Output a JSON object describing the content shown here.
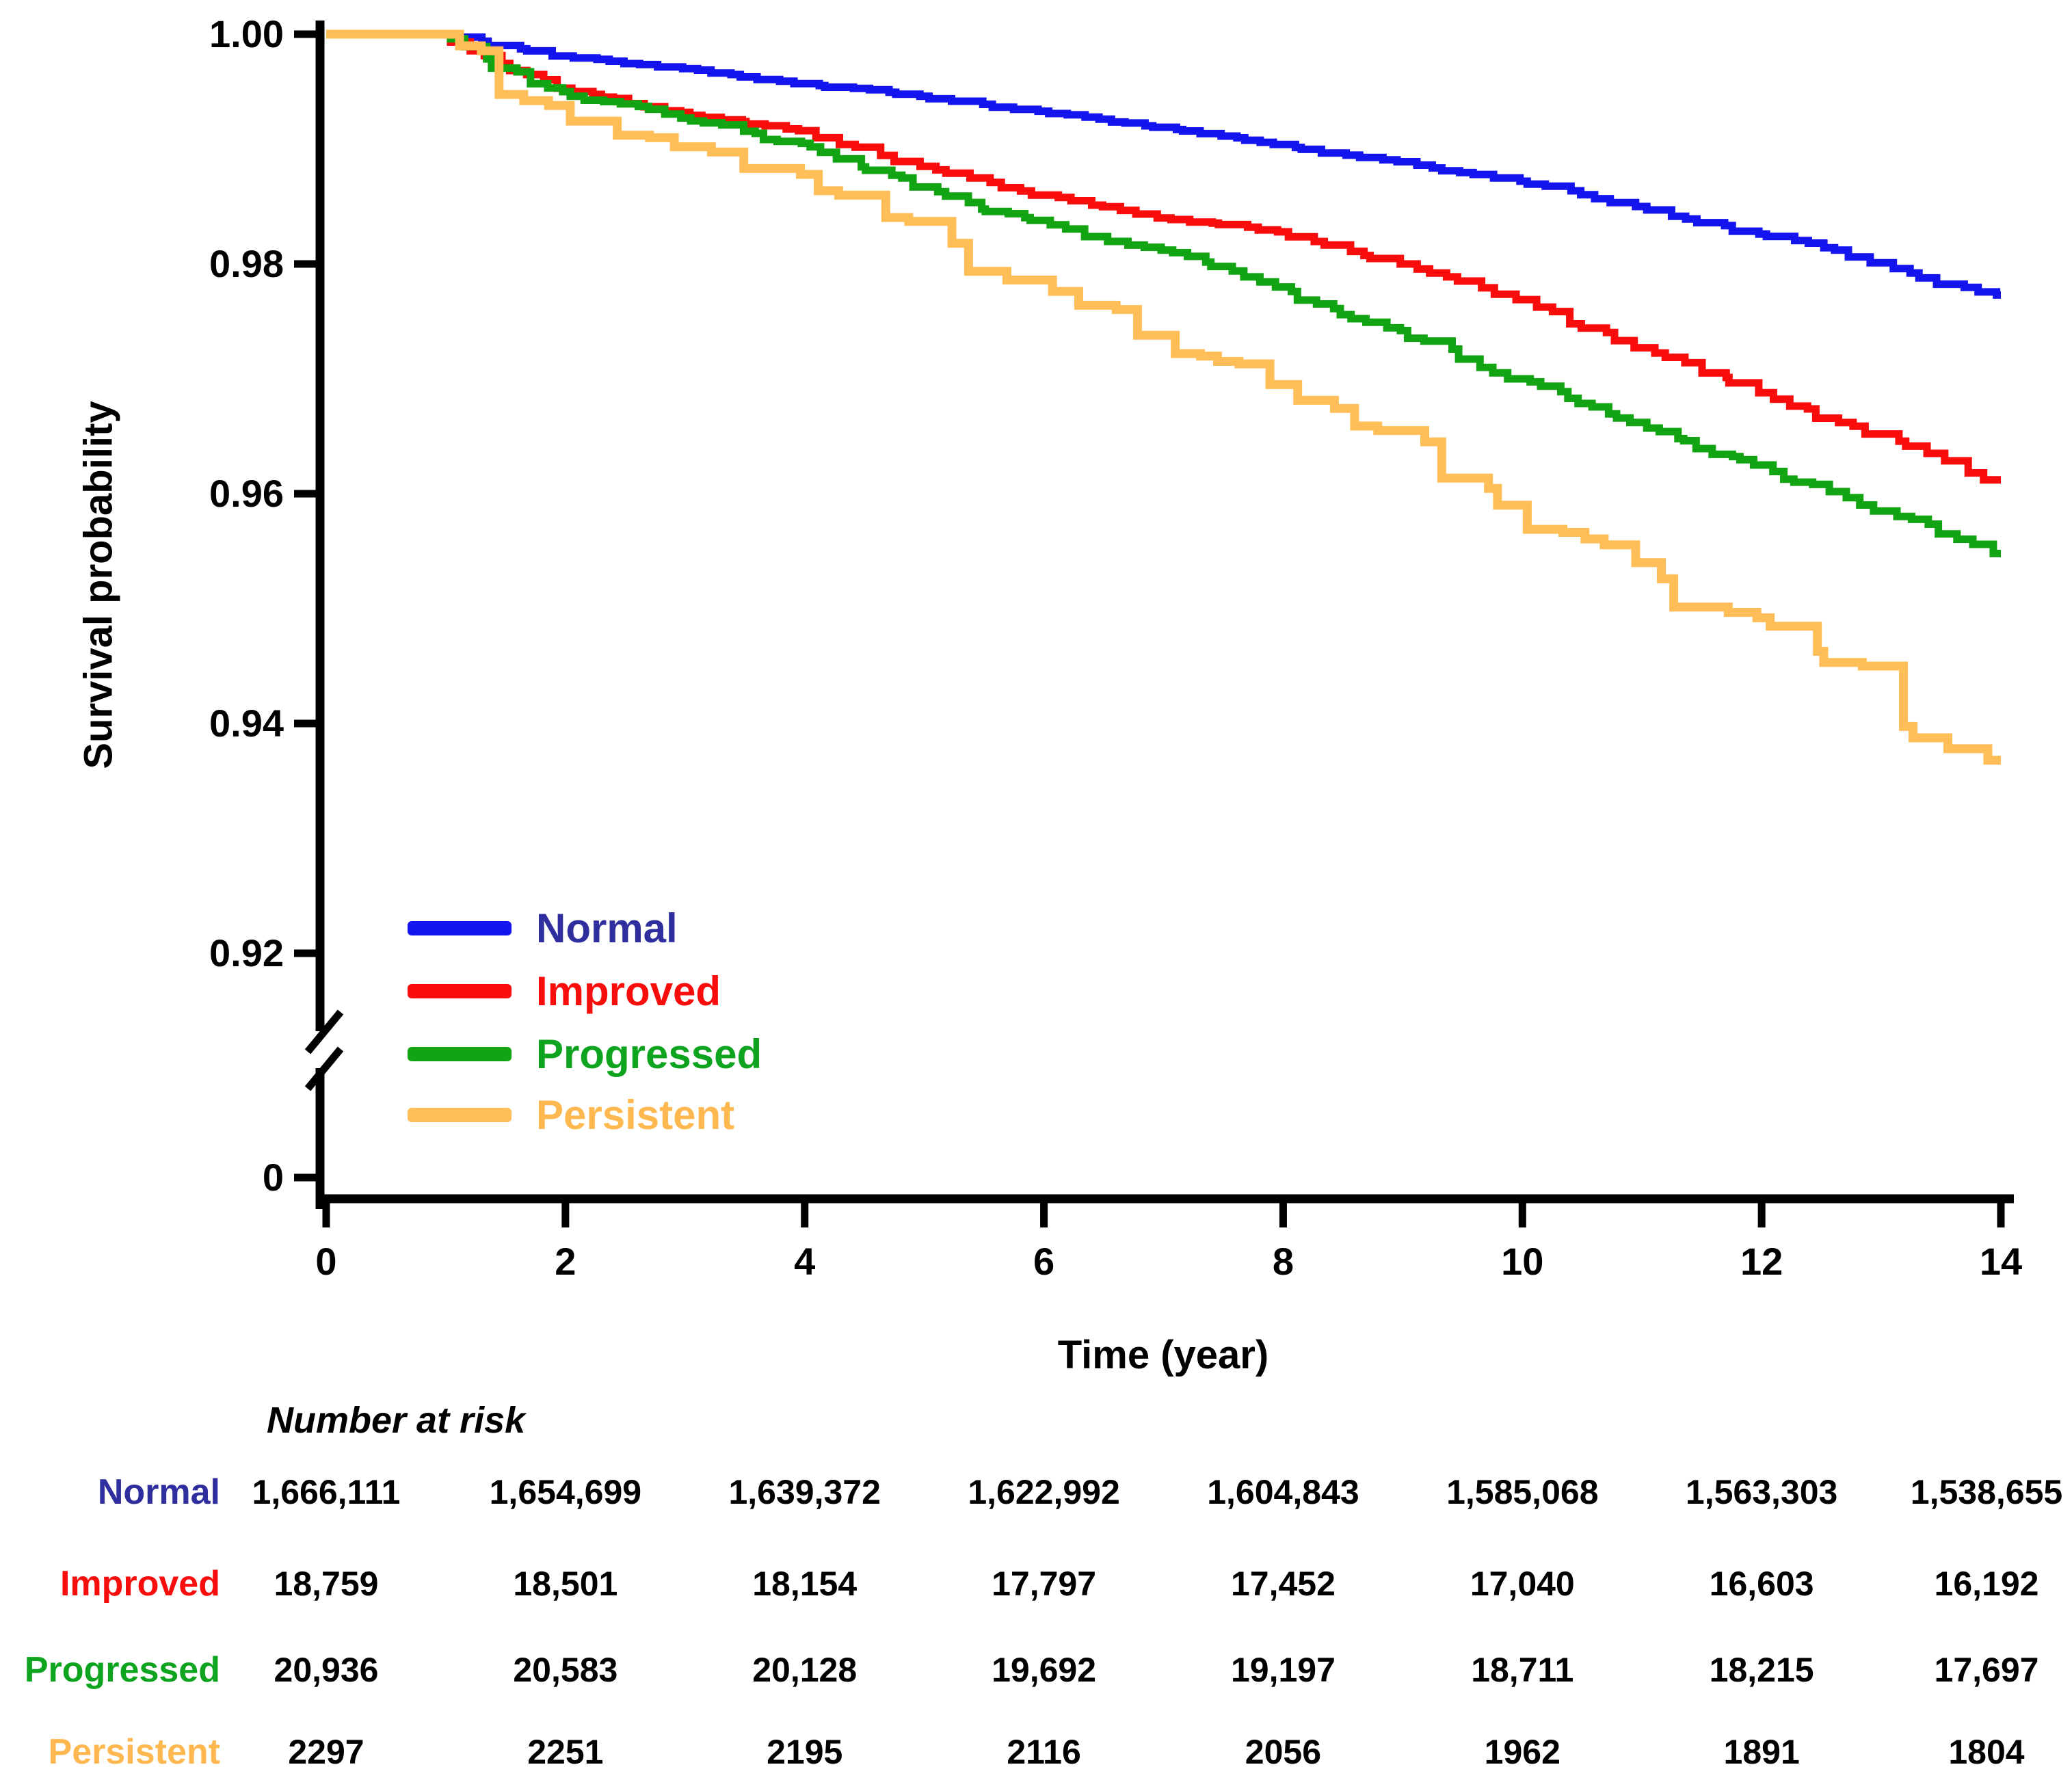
{
  "figure_title": "",
  "chart_data": {
    "type": "line",
    "subtype": "kaplan-meier-step",
    "title": "",
    "xlabel": "Time (year)",
    "ylabel": "Survival probability",
    "x_axis": {
      "min": 0,
      "max": 14,
      "tick_values": [
        0,
        2,
        4,
        6,
        8,
        10,
        12,
        14
      ],
      "tick_labels": [
        "0",
        "2",
        "4",
        "6",
        "8",
        "10",
        "12",
        "14"
      ]
    },
    "y_axis": {
      "broken": true,
      "upper_range": [
        0.92,
        1.0
      ],
      "tick_values": [
        1.0,
        0.98,
        0.96,
        0.94,
        0.92,
        0
      ],
      "tick_labels": [
        "1.00",
        "0.98",
        "0.96",
        "0.94",
        "0.92",
        "0"
      ],
      "grid": false
    },
    "legend_position": "inside-lower-left",
    "x_years": [
      0,
      1,
      2,
      3,
      4,
      5,
      6,
      7,
      8,
      9,
      10,
      11,
      12,
      13,
      14
    ],
    "series": [
      {
        "name": "Normal",
        "color": "#1414EE",
        "text_color": "#2E2E9E",
        "line_width": 11,
        "steps_per_year": 6,
        "step_wmin": 0.5,
        "step_wpow": 1.0,
        "steps_jitter": 2,
        "values": [
          1.0,
          1.0,
          0.9981,
          0.997,
          0.9957,
          0.9946,
          0.9933,
          0.9919,
          0.9904,
          0.9889,
          0.9872,
          0.985,
          0.9826,
          0.9801,
          0.9773
        ]
      },
      {
        "name": "Improved",
        "color": "#F90C0C",
        "text_color": "#F90C0C",
        "line_width": 11,
        "steps_per_year": 6,
        "step_wmin": 0.35,
        "step_wpow": 1.4,
        "steps_jitter": 2,
        "values": [
          1.0,
          1.0,
          0.9953,
          0.9932,
          0.9916,
          0.9885,
          0.986,
          0.984,
          0.9828,
          0.98,
          0.9769,
          0.9727,
          0.9688,
          0.9652,
          0.9612
        ]
      },
      {
        "name": "Progressed",
        "color": "#12A412",
        "text_color": "#0FA41F",
        "line_width": 11,
        "steps_per_year": 7,
        "step_wmin": 0.35,
        "step_wpow": 1.4,
        "steps_jitter": 2,
        "values": [
          1.0,
          1.0,
          0.995,
          0.9927,
          0.9905,
          0.9867,
          0.9838,
          0.9812,
          0.978,
          0.9742,
          0.97,
          0.9662,
          0.9625,
          0.9585,
          0.9548
        ]
      },
      {
        "name": "Persistent",
        "color": "#FFBE57",
        "text_color": "#FFB84F",
        "line_width": 13,
        "steps_per_year": 3,
        "step_wmin": 0.12,
        "step_wpow": 2.2,
        "steps_jitter": 2,
        "values": [
          1.0,
          1.0,
          0.9938,
          0.9902,
          0.9878,
          0.9837,
          0.9786,
          0.9738,
          0.9695,
          0.9655,
          0.959,
          0.954,
          0.9492,
          0.945,
          0.9368
        ]
      }
    ],
    "number_at_risk": {
      "title": "Number at risk",
      "time_points": [
        0,
        2,
        4,
        6,
        8,
        10,
        12,
        14
      ],
      "rows": [
        {
          "name": "Normal",
          "values": [
            "1,666,111",
            "1,654,699",
            "1,639,372",
            "1,622,992",
            "1,604,843",
            "1,585,068",
            "1,563,303",
            "1,538,655"
          ]
        },
        {
          "name": "Improved",
          "values": [
            "18,759",
            "18,501",
            "18,154",
            "17,797",
            "17,452",
            "17,040",
            "16,603",
            "16,192"
          ]
        },
        {
          "name": "Progressed",
          "values": [
            "20,936",
            "20,583",
            "20,128",
            "19,692",
            "19,197",
            "18,711",
            "18,215",
            "17,697"
          ]
        },
        {
          "name": "Persistent",
          "values": [
            "2297",
            "2251",
            "2195",
            "2116",
            "2056",
            "1962",
            "1891",
            "1804"
          ]
        }
      ]
    },
    "axis_color": "#000000"
  }
}
